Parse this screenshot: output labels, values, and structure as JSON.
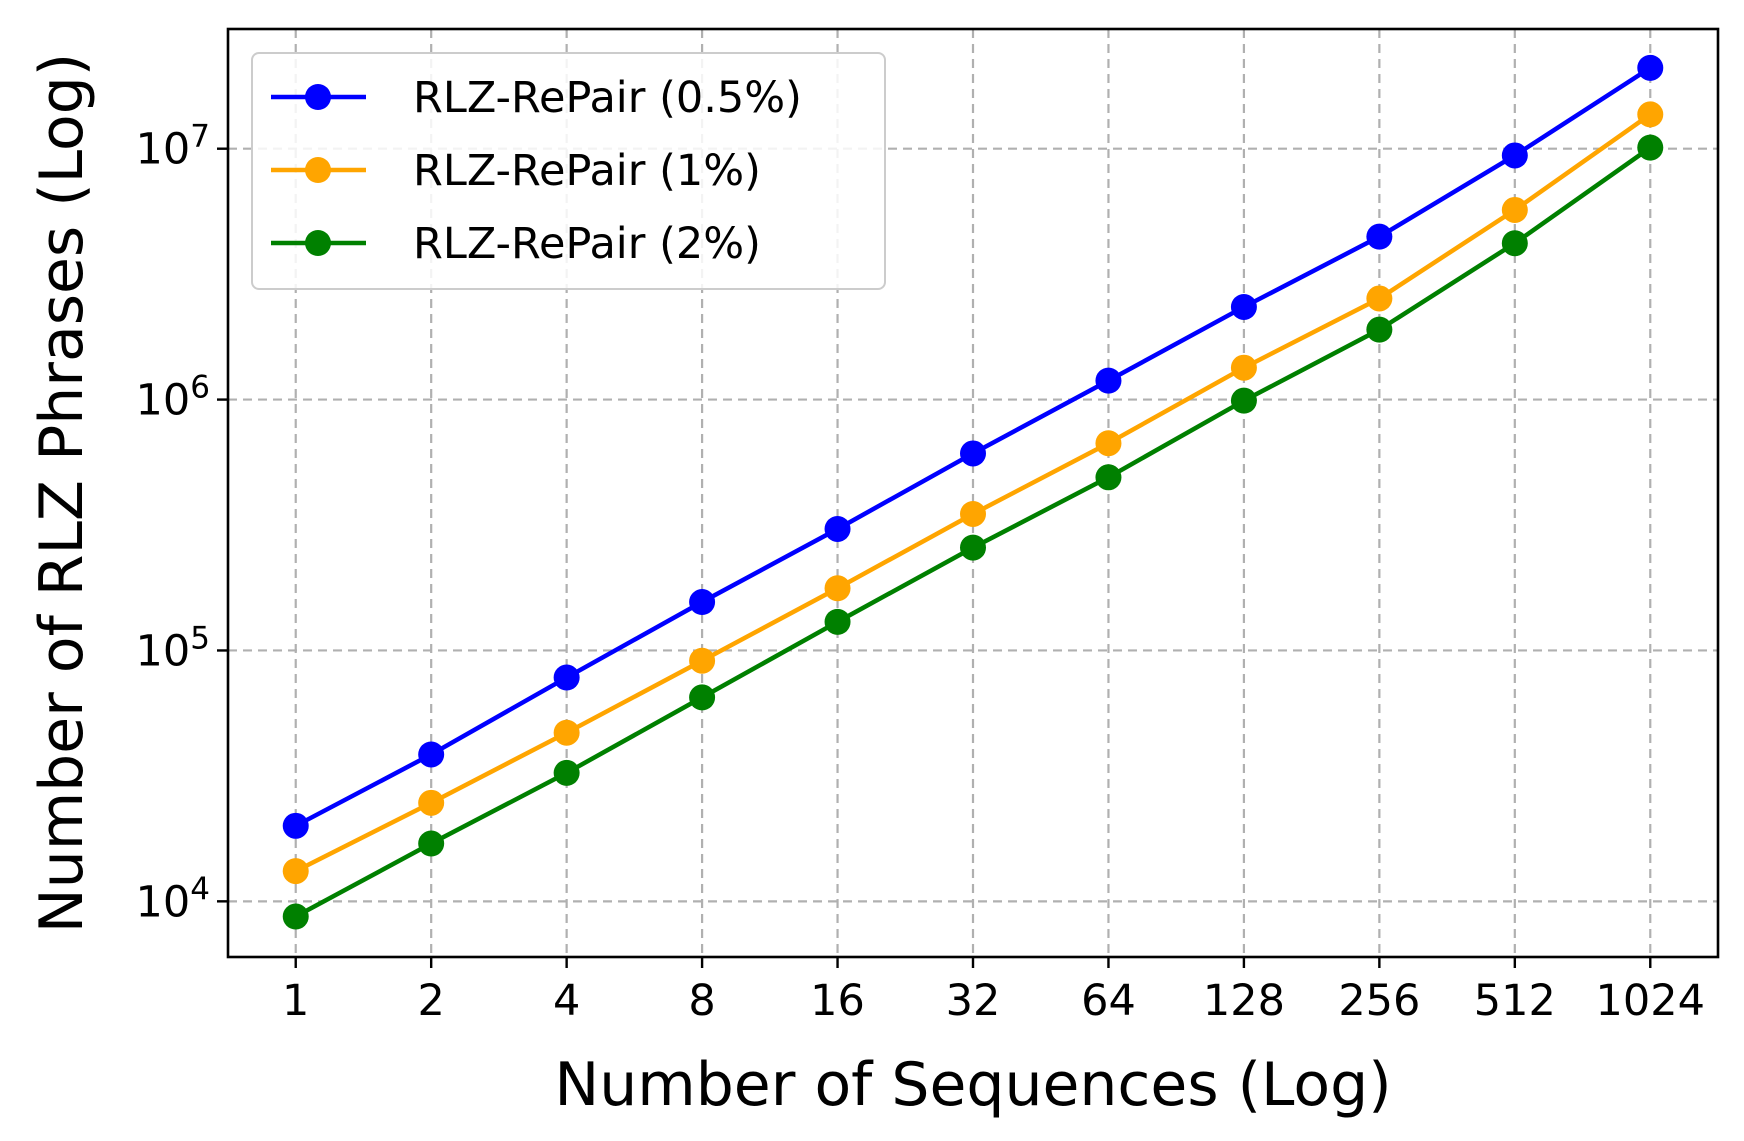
{
  "chart_data": {
    "type": "line",
    "title": "",
    "xlabel": "Number of Sequences (Log)",
    "ylabel": "Number of RLZ Phrases (Log)",
    "x_scale": "log2",
    "y_scale": "log10",
    "x": [
      1,
      2,
      4,
      8,
      16,
      32,
      64,
      128,
      256,
      512,
      1024
    ],
    "x_tick_labels": [
      "1",
      "2",
      "4",
      "8",
      "16",
      "32",
      "64",
      "128",
      "256",
      "512",
      "1024"
    ],
    "y_ticks": [
      {
        "base": "10",
        "exp": "4",
        "value": 10000
      },
      {
        "base": "10",
        "exp": "5",
        "value": 100000
      },
      {
        "base": "10",
        "exp": "6",
        "value": 1000000
      },
      {
        "base": "10",
        "exp": "7",
        "value": 10000000
      }
    ],
    "ylim": [
      6000,
      30000000
    ],
    "grid": true,
    "legend_position": "top-left",
    "series": [
      {
        "name": "RLZ-RePair (0.5%)",
        "color": "#0000ff",
        "values": [
          20000,
          38500,
          78000,
          156000,
          305000,
          610000,
          1190000,
          2340000,
          4460000,
          9400000,
          21000000
        ]
      },
      {
        "name": "RLZ-RePair (1%)",
        "color": "#ffa500",
        "values": [
          13200,
          24700,
          47000,
          91000,
          177000,
          350000,
          670000,
          1340000,
          2530000,
          5700000,
          13700000
        ]
      },
      {
        "name": "RLZ-RePair (2%)",
        "color": "#008000",
        "values": [
          8700,
          17000,
          32500,
          65000,
          130000,
          257000,
          490000,
          990000,
          1900000,
          4200000,
          10100000
        ]
      }
    ]
  }
}
